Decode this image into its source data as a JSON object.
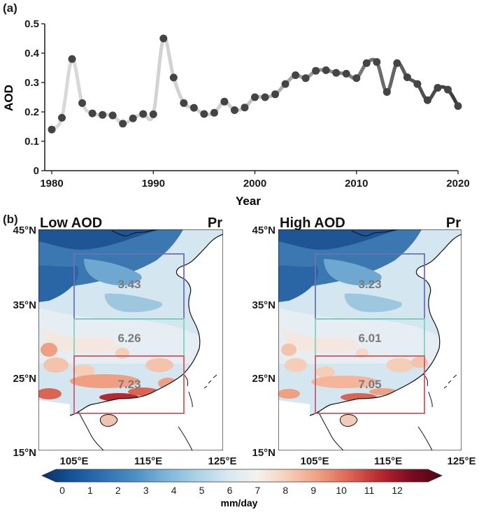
{
  "panel_a": {
    "letter": "(a)",
    "chart_data": {
      "type": "line",
      "title": "",
      "xlabel": "Year",
      "ylabel": "AOD",
      "xlim": [
        1980,
        2020
      ],
      "ylim": [
        0,
        0.5
      ],
      "xticks": [
        "1980",
        "1990",
        "2000",
        "2010",
        "2020"
      ],
      "yticks": [
        "0",
        "0.1",
        "0.2",
        "0.3",
        "0.4",
        "0.5"
      ],
      "x": [
        1980,
        1981,
        1982,
        1983,
        1984,
        1985,
        1986,
        1987,
        1988,
        1989,
        1990,
        1991,
        1992,
        1993,
        1994,
        1995,
        1996,
        1997,
        1998,
        1999,
        2000,
        2001,
        2002,
        2003,
        2004,
        2005,
        2006,
        2007,
        2008,
        2009,
        2010,
        2011,
        2012,
        2013,
        2014,
        2015,
        2016,
        2017,
        2018,
        2019,
        2020
      ],
      "series": [
        {
          "values": [
            0.14,
            0.18,
            0.38,
            0.23,
            0.195,
            0.19,
            0.188,
            0.16,
            0.178,
            0.193,
            0.192,
            0.45,
            0.317,
            0.23,
            0.214,
            0.193,
            0.197,
            0.235,
            0.206,
            0.215,
            0.25,
            0.25,
            0.26,
            0.295,
            0.325,
            0.315,
            0.34,
            0.342,
            0.333,
            0.33,
            0.315,
            0.366,
            0.37,
            0.268,
            0.366,
            0.318,
            0.295,
            0.24,
            0.282,
            0.276,
            0.22
          ],
          "line_color_start": "#d9d9d9",
          "line_color_end": "#3a3a3a",
          "marker_color": "#444444"
        }
      ],
      "grid": false,
      "legend": "none"
    }
  },
  "panel_b": {
    "letter": "(b)",
    "maps": [
      {
        "title": "Low AOD",
        "variable": "Pr",
        "box_values": [
          "3.43",
          "6.26",
          "7.23"
        ]
      },
      {
        "title": "High AOD",
        "variable": "Pr",
        "box_values": [
          "3.23",
          "6.01",
          "7.05"
        ]
      }
    ],
    "lat_labels": [
      "45°N",
      "35°N",
      "25°N",
      "15°N"
    ],
    "lon_labels": [
      "105°E",
      "115°E",
      "125°E"
    ],
    "box_colors": [
      "#6d72b3",
      "#7fd3c3",
      "#cc5a66"
    ],
    "colorbar": {
      "label": "mm/day",
      "ticks": [
        "0",
        "1",
        "2",
        "3",
        "4",
        "5",
        "6",
        "7",
        "8",
        "9",
        "10",
        "11",
        "12"
      ],
      "colors": [
        "#08306b",
        "#16539a",
        "#2f70b3",
        "#4b8ec4",
        "#7ab4d8",
        "#a9d1e6",
        "#d5e8f1",
        "#f5f2ef",
        "#f6cdb7",
        "#ef9f82",
        "#dc6452",
        "#b8282f",
        "#7a0b1f",
        "#4a0616"
      ]
    }
  }
}
